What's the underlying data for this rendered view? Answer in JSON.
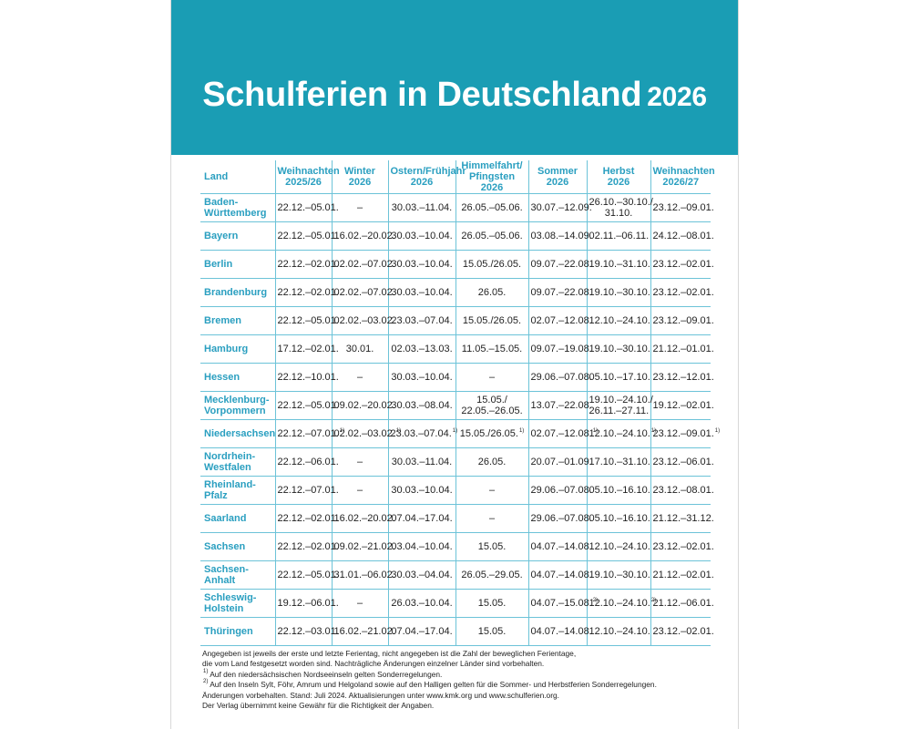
{
  "colors": {
    "banner": "#1a9db4",
    "accent": "#2a9fc0",
    "grid": "#6cc3d8"
  },
  "title": {
    "main": "Schulferien in Deutschland",
    "year": "2026"
  },
  "headers": [
    "Land",
    "Weihnachten\n2025/26",
    "Winter\n2026",
    "Ostern/Frühjahr\n2026",
    "Himmelfahrt/\nPfingsten 2026",
    "Sommer\n2026",
    "Herbst\n2026",
    "Weihnachten\n2026/27"
  ],
  "rows": [
    {
      "land": "Baden-\nWürttemberg",
      "cells": [
        "22.12.–05.01.",
        "–",
        "30.03.–11.04.",
        "26.05.–05.06.",
        "30.07.–12.09.",
        "26.10.–30.10./\n31.10.",
        "23.12.–09.01."
      ]
    },
    {
      "land": "Bayern",
      "cells": [
        "22.12.–05.01.",
        "16.02.–20.02.",
        "30.03.–10.04.",
        "26.05.–05.06.",
        "03.08.–14.09.",
        "02.11.–06.11.",
        "24.12.–08.01."
      ]
    },
    {
      "land": "Berlin",
      "cells": [
        "22.12.–02.01.",
        "02.02.–07.02.",
        "30.03.–10.04.",
        "15.05./26.05.",
        "09.07.–22.08.",
        "19.10.–31.10.",
        "23.12.–02.01."
      ]
    },
    {
      "land": "Brandenburg",
      "cells": [
        "22.12.–02.01.",
        "02.02.–07.02.",
        "30.03.–10.04.",
        "26.05.",
        "09.07.–22.08.",
        "19.10.–30.10.",
        "23.12.–02.01."
      ]
    },
    {
      "land": "Bremen",
      "cells": [
        "22.12.–05.01.",
        "02.02.–03.02.",
        "23.03.–07.04.",
        "15.05./26.05.",
        "02.07.–12.08.",
        "12.10.–24.10.",
        "23.12.–09.01."
      ]
    },
    {
      "land": "Hamburg",
      "cells": [
        "17.12.–02.01.",
        "30.01.",
        "02.03.–13.03.",
        "11.05.–15.05.",
        "09.07.–19.08.",
        "19.10.–30.10.",
        "21.12.–01.01."
      ]
    },
    {
      "land": "Hessen",
      "cells": [
        "22.12.–10.01.",
        "–",
        "30.03.–10.04.",
        "–",
        "29.06.–07.08.",
        "05.10.–17.10.",
        "23.12.–12.01."
      ]
    },
    {
      "land": "Mecklenburg-\nVorpommern",
      "cells": [
        "22.12.–05.01.",
        "09.02.–20.02.",
        "30.03.–08.04.",
        "15.05./\n22.05.–26.05.",
        "13.07.–22.08.",
        "19.10.–24.10./\n26.11.–27.11.",
        "19.12.–02.01."
      ]
    },
    {
      "land": "Niedersachsen",
      "cells": [
        "22.12.–07.01.",
        "02.02.–03.02.",
        "23.03.–07.04.",
        "15.05./26.05.",
        "02.07.–12.08.",
        "12.10.–24.10.",
        "23.12.–09.01."
      ],
      "marks": [
        "1)",
        "1)",
        "1)",
        "1)",
        "1)",
        "1)",
        "1)"
      ]
    },
    {
      "land": "Nordrhein-\nWestfalen",
      "cells": [
        "22.12.–06.01.",
        "–",
        "30.03.–11.04.",
        "26.05.",
        "20.07.–01.09.",
        "17.10.–31.10.",
        "23.12.–06.01."
      ]
    },
    {
      "land": "Rheinland-Pfalz",
      "cells": [
        "22.12.–07.01.",
        "–",
        "30.03.–10.04.",
        "–",
        "29.06.–07.08.",
        "05.10.–16.10.",
        "23.12.–08.01."
      ]
    },
    {
      "land": "Saarland",
      "cells": [
        "22.12.–02.01.",
        "16.02.–20.02.",
        "07.04.–17.04.",
        "–",
        "29.06.–07.08.",
        "05.10.–16.10.",
        "21.12.–31.12."
      ]
    },
    {
      "land": "Sachsen",
      "cells": [
        "22.12.–02.01.",
        "09.02.–21.02.",
        "03.04.–10.04.",
        "15.05.",
        "04.07.–14.08.",
        "12.10.–24.10.",
        "23.12.–02.01."
      ]
    },
    {
      "land": "Sachsen-Anhalt",
      "cells": [
        "22.12.–05.01.",
        "31.01.–06.02.",
        "30.03.–04.04.",
        "26.05.–29.05.",
        "04.07.–14.08.",
        "19.10.–30.10.",
        "21.12.–02.01."
      ]
    },
    {
      "land": "Schleswig-\nHolstein",
      "cells": [
        "19.12.–06.01.",
        "–",
        "26.03.–10.04.",
        "15.05.",
        "04.07.–15.08.",
        "12.10.–24.10.",
        "21.12.–06.01."
      ],
      "marks": [
        "",
        "",
        "",
        "",
        "2)",
        "2)",
        ""
      ]
    },
    {
      "land": "Thüringen",
      "cells": [
        "22.12.–03.01.",
        "16.02.–21.02.",
        "07.04.–17.04.",
        "15.05.",
        "04.07.–14.08.",
        "12.10.–24.10.",
        "23.12.–02.01."
      ]
    }
  ],
  "footnotes": {
    "line1": "Angegeben ist jeweils der erste und letzte Ferientag, nicht angegeben ist die Zahl der beweglichen Ferientage,",
    "line2": "die vom Land festgesetzt worden sind. Nachträgliche Änderungen einzelner Länder sind vorbehalten.",
    "note1_mark": "1)",
    "note1": "Auf den niedersächsischen Nordseeinseln gelten Sonderregelungen.",
    "note2_mark": "2)",
    "note2": "Auf den Inseln Sylt, Föhr, Amrum und Helgoland sowie auf den Halligen gelten für die Sommer- und Herbstferien Sonderregelungen.",
    "line5": "Änderungen vorbehalten. Stand: Juli 2024. Aktualisierungen unter www.kmk.org und www.schulferien.org.",
    "line6": "Der Verlag übernimmt keine Gewähr für die Richtigkeit der Angaben."
  }
}
